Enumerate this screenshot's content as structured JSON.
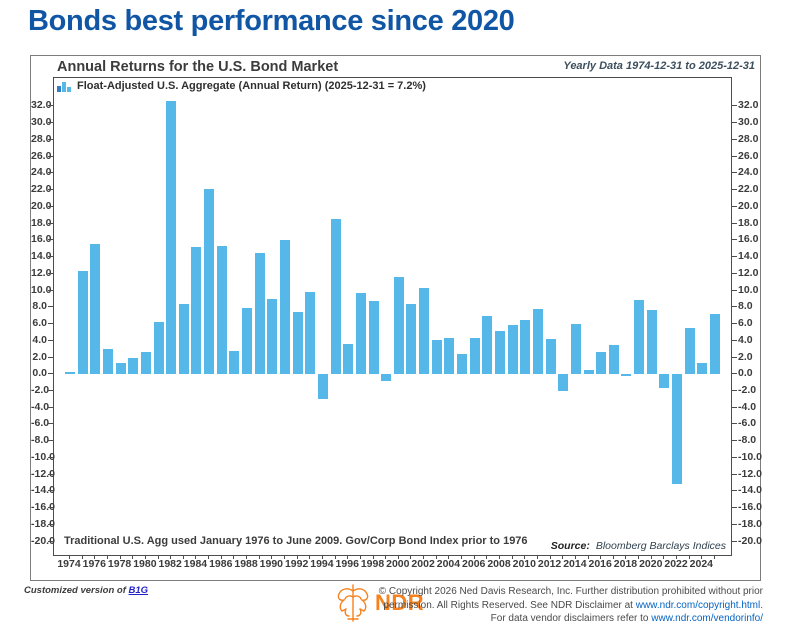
{
  "header": {
    "title": "Bonds best performance since 2020"
  },
  "chart": {
    "title": "Annual Returns for the U.S. Bond Market",
    "period_label": "Yearly Data 1974-12-31 to 2025-12-31",
    "legend_label": "Float-Adjusted U.S. Aggregate (Annual Return) (2025-12-31 = 7.2%)",
    "footnote": "Traditional U.S. Agg used January 1976 to June 2009. Gov/Corp Bond Index prior to 1976",
    "source_label": "Source:",
    "source": "Bloomberg Barclays Indices"
  },
  "chart_data": {
    "type": "bar",
    "title": "Annual Returns for the U.S. Bond Market",
    "legend": "Float-Adjusted U.S. Aggregate (Annual Return) (2025-12-31 = 7.2%)",
    "x": [
      1974,
      1975,
      1976,
      1977,
      1978,
      1979,
      1980,
      1981,
      1982,
      1983,
      1984,
      1985,
      1986,
      1987,
      1988,
      1989,
      1990,
      1991,
      1992,
      1993,
      1994,
      1995,
      1996,
      1997,
      1998,
      1999,
      2000,
      2001,
      2002,
      2003,
      2004,
      2005,
      2006,
      2007,
      2008,
      2009,
      2010,
      2011,
      2012,
      2013,
      2014,
      2015,
      2016,
      2017,
      2018,
      2019,
      2020,
      2021,
      2022,
      2023,
      2024,
      2025
    ],
    "values": [
      0.3,
      12.3,
      15.6,
      3.0,
      1.4,
      1.9,
      2.7,
      6.3,
      32.6,
      8.4,
      15.2,
      22.1,
      15.3,
      2.8,
      7.9,
      14.5,
      9.0,
      16.0,
      7.4,
      9.8,
      -2.9,
      18.5,
      3.6,
      9.7,
      8.7,
      -0.8,
      11.6,
      8.4,
      10.3,
      4.1,
      4.3,
      2.4,
      4.3,
      7.0,
      5.2,
      5.9,
      6.5,
      7.8,
      4.2,
      -2.0,
      6.0,
      0.5,
      2.6,
      3.5,
      -0.1,
      8.9,
      7.7,
      -1.6,
      -13.1,
      5.5,
      1.3,
      7.2
    ],
    "yticks": [
      32,
      30,
      28,
      26,
      24,
      22,
      20,
      18,
      16,
      14,
      12,
      10,
      8,
      6,
      4,
      2,
      0,
      -2,
      -4,
      -6,
      -8,
      -10,
      -12,
      -14,
      -16,
      -18,
      -20
    ],
    "xticks": [
      1974,
      1976,
      1978,
      1980,
      1982,
      1984,
      1986,
      1988,
      1990,
      1992,
      1994,
      1996,
      1998,
      2000,
      2002,
      2004,
      2006,
      2008,
      2010,
      2012,
      2014,
      2016,
      2018,
      2020,
      2022,
      2024
    ],
    "ylim": [
      -21.6,
      35.4
    ],
    "grid": false,
    "legend_position": "top-left",
    "bar_color": "#55b8e9",
    "xlabel": "",
    "ylabel": ""
  },
  "icons": {
    "legend_icon": "mini-bar-chart",
    "logo_icon": "bull-bear-line-art"
  },
  "colors": {
    "page_title": "#1156a5",
    "bar": "#55b8e9",
    "logo_orange": "#f5821f",
    "link_blue": "#0563c1"
  },
  "footer": {
    "customized_prefix": "Customized version of ",
    "customized_link": "B1G",
    "logo_text": "NDR",
    "copyright_line1": "© Copyright 2026 Ned Davis Research, Inc. Further distribution prohibited without prior",
    "copyright_line2_prefix": "permission. All Rights Reserved. See NDR Disclaimer at  ",
    "copyright_link1": "www.ndr.com/copyright.html.",
    "copyright_line3_prefix": "For data vendor disclaimers refer to ",
    "copyright_link2": "www.ndr.com/vendorinfo/"
  }
}
